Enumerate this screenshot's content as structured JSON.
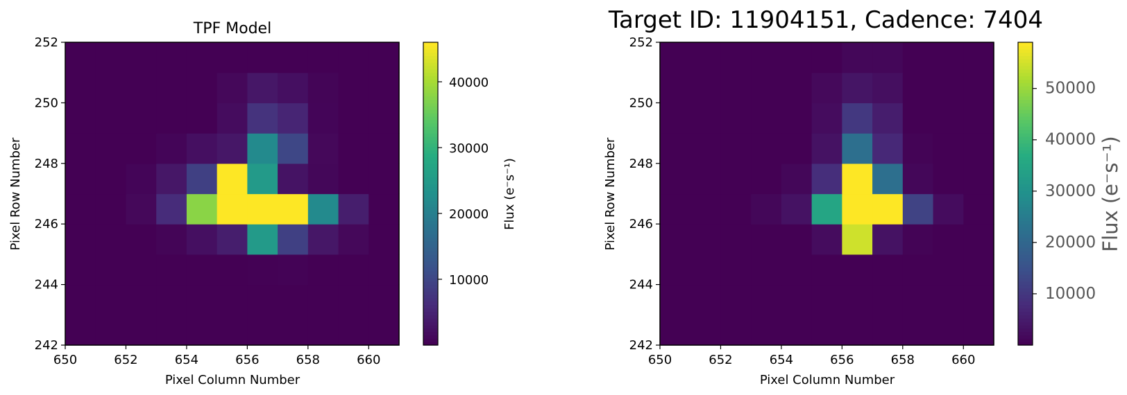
{
  "chart_data": [
    {
      "type": "heatmap",
      "title": "TPF Model",
      "xlabel": "Pixel Column Number",
      "ylabel": "Pixel Row Number",
      "colorbar_label": "Flux (e⁻s⁻¹)",
      "colormap": "viridis",
      "xlim": [
        650,
        661
      ],
      "ylim": [
        242,
        252
      ],
      "x_ticks": [
        650,
        652,
        654,
        656,
        658,
        660
      ],
      "y_ticks": [
        242,
        244,
        246,
        248,
        250,
        252
      ],
      "color_range": [
        0,
        46000
      ],
      "colorbar_ticks": [
        10000,
        20000,
        30000,
        40000
      ],
      "col_start": 650,
      "row_start": 242,
      "values": [
        [
          0,
          0,
          0,
          0,
          0,
          0,
          0,
          0,
          0,
          0,
          0
        ],
        [
          0,
          0,
          0,
          0,
          0,
          0,
          0,
          0,
          0,
          0,
          0
        ],
        [
          0,
          0,
          0,
          0,
          0,
          0,
          200,
          300,
          0,
          0,
          0
        ],
        [
          0,
          0,
          0,
          500,
          2000,
          4000,
          25000,
          9000,
          3000,
          1000,
          0
        ],
        [
          0,
          0,
          1000,
          6000,
          38000,
          46000,
          46000,
          46000,
          22000,
          4000,
          0
        ],
        [
          0,
          0,
          600,
          3000,
          9000,
          46000,
          25000,
          2500,
          800,
          0,
          0
        ],
        [
          0,
          0,
          0,
          600,
          2000,
          3000,
          22000,
          10000,
          1000,
          0,
          0
        ],
        [
          0,
          0,
          0,
          0,
          0,
          1500,
          7000,
          5000,
          600,
          0,
          0
        ],
        [
          0,
          0,
          0,
          0,
          0,
          1000,
          3000,
          2000,
          500,
          0,
          0
        ],
        [
          0,
          0,
          0,
          0,
          0,
          0,
          0,
          0,
          0,
          0,
          0
        ]
      ]
    },
    {
      "type": "heatmap",
      "title": "Target ID: 11904151, Cadence: 7404",
      "xlabel": "Pixel Column Number",
      "ylabel": "Pixel Row Number",
      "colorbar_label": "Flux (e⁻s⁻¹)",
      "colormap": "viridis",
      "xlim": [
        650,
        661
      ],
      "ylim": [
        242,
        252
      ],
      "x_ticks": [
        650,
        652,
        654,
        656,
        658,
        660
      ],
      "y_ticks": [
        242,
        244,
        246,
        248,
        250,
        252
      ],
      "color_range": [
        0,
        59000
      ],
      "colorbar_ticks": [
        10000,
        20000,
        30000,
        40000,
        50000
      ],
      "col_start": 650,
      "row_start": 242,
      "values": [
        [
          0,
          0,
          0,
          0,
          0,
          0,
          0,
          0,
          0,
          0,
          0
        ],
        [
          0,
          0,
          0,
          0,
          0,
          0,
          0,
          0,
          0,
          0,
          0
        ],
        [
          0,
          0,
          0,
          0,
          0,
          0,
          0,
          0,
          0,
          0,
          0
        ],
        [
          0,
          0,
          0,
          0,
          0,
          2000,
          55000,
          3000,
          500,
          0,
          0
        ],
        [
          0,
          0,
          0,
          1000,
          3000,
          35000,
          59000,
          59000,
          12000,
          2000,
          0
        ],
        [
          0,
          0,
          0,
          0,
          1000,
          8000,
          59000,
          22000,
          1000,
          0,
          0
        ],
        [
          0,
          0,
          0,
          0,
          0,
          3000,
          22000,
          7000,
          500,
          0,
          0
        ],
        [
          0,
          0,
          0,
          0,
          0,
          2000,
          10000,
          5000,
          0,
          0,
          0
        ],
        [
          0,
          0,
          0,
          0,
          0,
          1500,
          3500,
          2500,
          0,
          0,
          0
        ],
        [
          0,
          0,
          0,
          0,
          0,
          0,
          1000,
          1000,
          0,
          0,
          0
        ]
      ]
    }
  ]
}
